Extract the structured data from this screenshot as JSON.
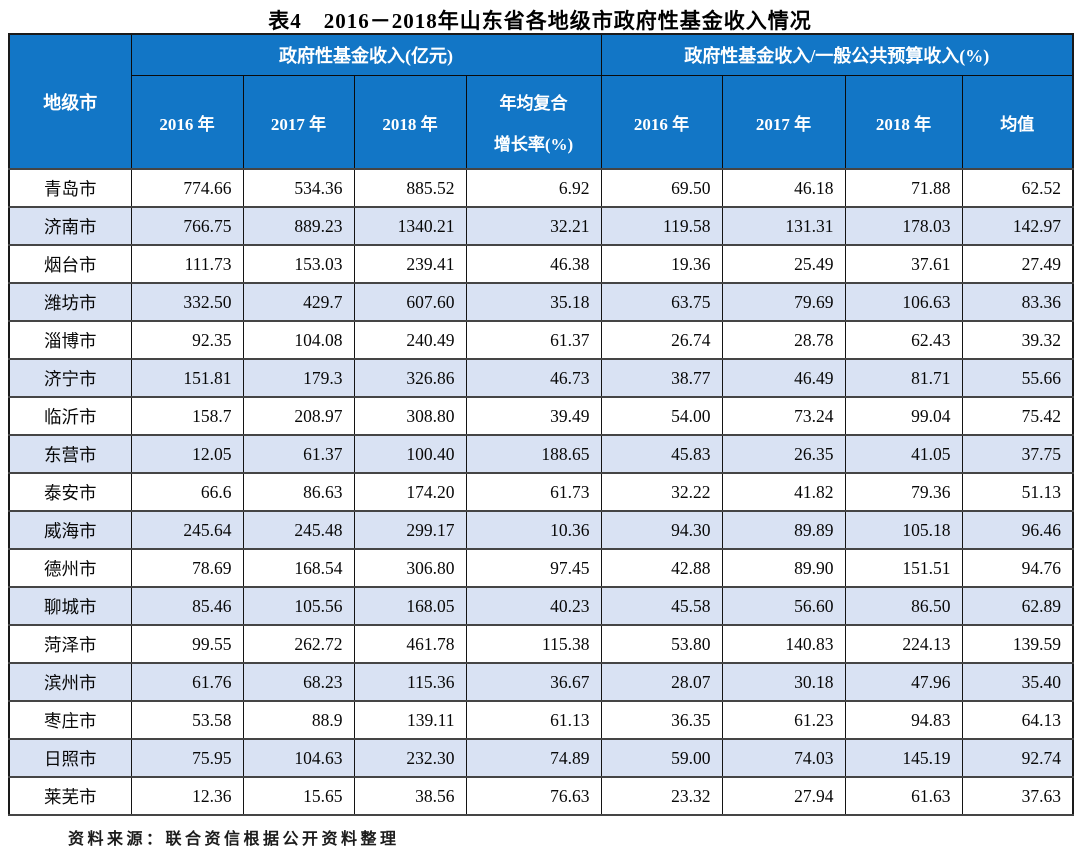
{
  "title": "表4　2016－2018年山东省各地级市政府性基金收入情况",
  "table": {
    "corner_header": "地级市",
    "group_headers": [
      {
        "label": "政府性基金收入(亿元)"
      },
      {
        "label": "政府性基金收入/一般公共预算收入(%)"
      }
    ],
    "sub_headers": [
      {
        "line1": "2016 年"
      },
      {
        "line1": "2017 年"
      },
      {
        "line1": "2018 年"
      },
      {
        "line1": "年均复合",
        "line2": "增长率(%)"
      },
      {
        "line1": "2016 年"
      },
      {
        "line1": "2017 年"
      },
      {
        "line1": "2018 年"
      },
      {
        "line1": "均值"
      }
    ],
    "rows": [
      {
        "city": "青岛市",
        "values": [
          "774.66",
          "534.36",
          "885.52",
          "6.92",
          "69.50",
          "46.18",
          "71.88",
          "62.52"
        ]
      },
      {
        "city": "济南市",
        "values": [
          "766.75",
          "889.23",
          "1340.21",
          "32.21",
          "119.58",
          "131.31",
          "178.03",
          "142.97"
        ]
      },
      {
        "city": "烟台市",
        "values": [
          "111.73",
          "153.03",
          "239.41",
          "46.38",
          "19.36",
          "25.49",
          "37.61",
          "27.49"
        ]
      },
      {
        "city": "潍坊市",
        "values": [
          "332.50",
          "429.7",
          "607.60",
          "35.18",
          "63.75",
          "79.69",
          "106.63",
          "83.36"
        ]
      },
      {
        "city": "淄博市",
        "values": [
          "92.35",
          "104.08",
          "240.49",
          "61.37",
          "26.74",
          "28.78",
          "62.43",
          "39.32"
        ]
      },
      {
        "city": "济宁市",
        "values": [
          "151.81",
          "179.3",
          "326.86",
          "46.73",
          "38.77",
          "46.49",
          "81.71",
          "55.66"
        ]
      },
      {
        "city": "临沂市",
        "values": [
          "158.7",
          "208.97",
          "308.80",
          "39.49",
          "54.00",
          "73.24",
          "99.04",
          "75.42"
        ]
      },
      {
        "city": "东营市",
        "values": [
          "12.05",
          "61.37",
          "100.40",
          "188.65",
          "45.83",
          "26.35",
          "41.05",
          "37.75"
        ]
      },
      {
        "city": "泰安市",
        "values": [
          "66.6",
          "86.63",
          "174.20",
          "61.73",
          "32.22",
          "41.82",
          "79.36",
          "51.13"
        ]
      },
      {
        "city": "威海市",
        "values": [
          "245.64",
          "245.48",
          "299.17",
          "10.36",
          "94.30",
          "89.89",
          "105.18",
          "96.46"
        ]
      },
      {
        "city": "德州市",
        "values": [
          "78.69",
          "168.54",
          "306.80",
          "97.45",
          "42.88",
          "89.90",
          "151.51",
          "94.76"
        ]
      },
      {
        "city": "聊城市",
        "values": [
          "85.46",
          "105.56",
          "168.05",
          "40.23",
          "45.58",
          "56.60",
          "86.50",
          "62.89"
        ]
      },
      {
        "city": "菏泽市",
        "values": [
          "99.55",
          "262.72",
          "461.78",
          "115.38",
          "53.80",
          "140.83",
          "224.13",
          "139.59"
        ]
      },
      {
        "city": "滨州市",
        "values": [
          "61.76",
          "68.23",
          "115.36",
          "36.67",
          "28.07",
          "30.18",
          "47.96",
          "35.40"
        ]
      },
      {
        "city": "枣庄市",
        "values": [
          "53.58",
          "88.9",
          "139.11",
          "61.13",
          "36.35",
          "61.23",
          "94.83",
          "64.13"
        ]
      },
      {
        "city": "日照市",
        "values": [
          "75.95",
          "104.63",
          "232.30",
          "74.89",
          "59.00",
          "74.03",
          "145.19",
          "92.74"
        ]
      },
      {
        "city": "莱芜市",
        "values": [
          "12.36",
          "15.65",
          "38.56",
          "76.63",
          "23.32",
          "27.94",
          "61.63",
          "37.63"
        ]
      }
    ]
  },
  "footer": {
    "source_note": "资料来源：联合资信根据公开资料整理"
  },
  "colors": {
    "header_blue": "#1276c6",
    "alt_row": "#d9e2f3",
    "border_dark": "#1a1a1a",
    "header_text": "#ffffff"
  }
}
